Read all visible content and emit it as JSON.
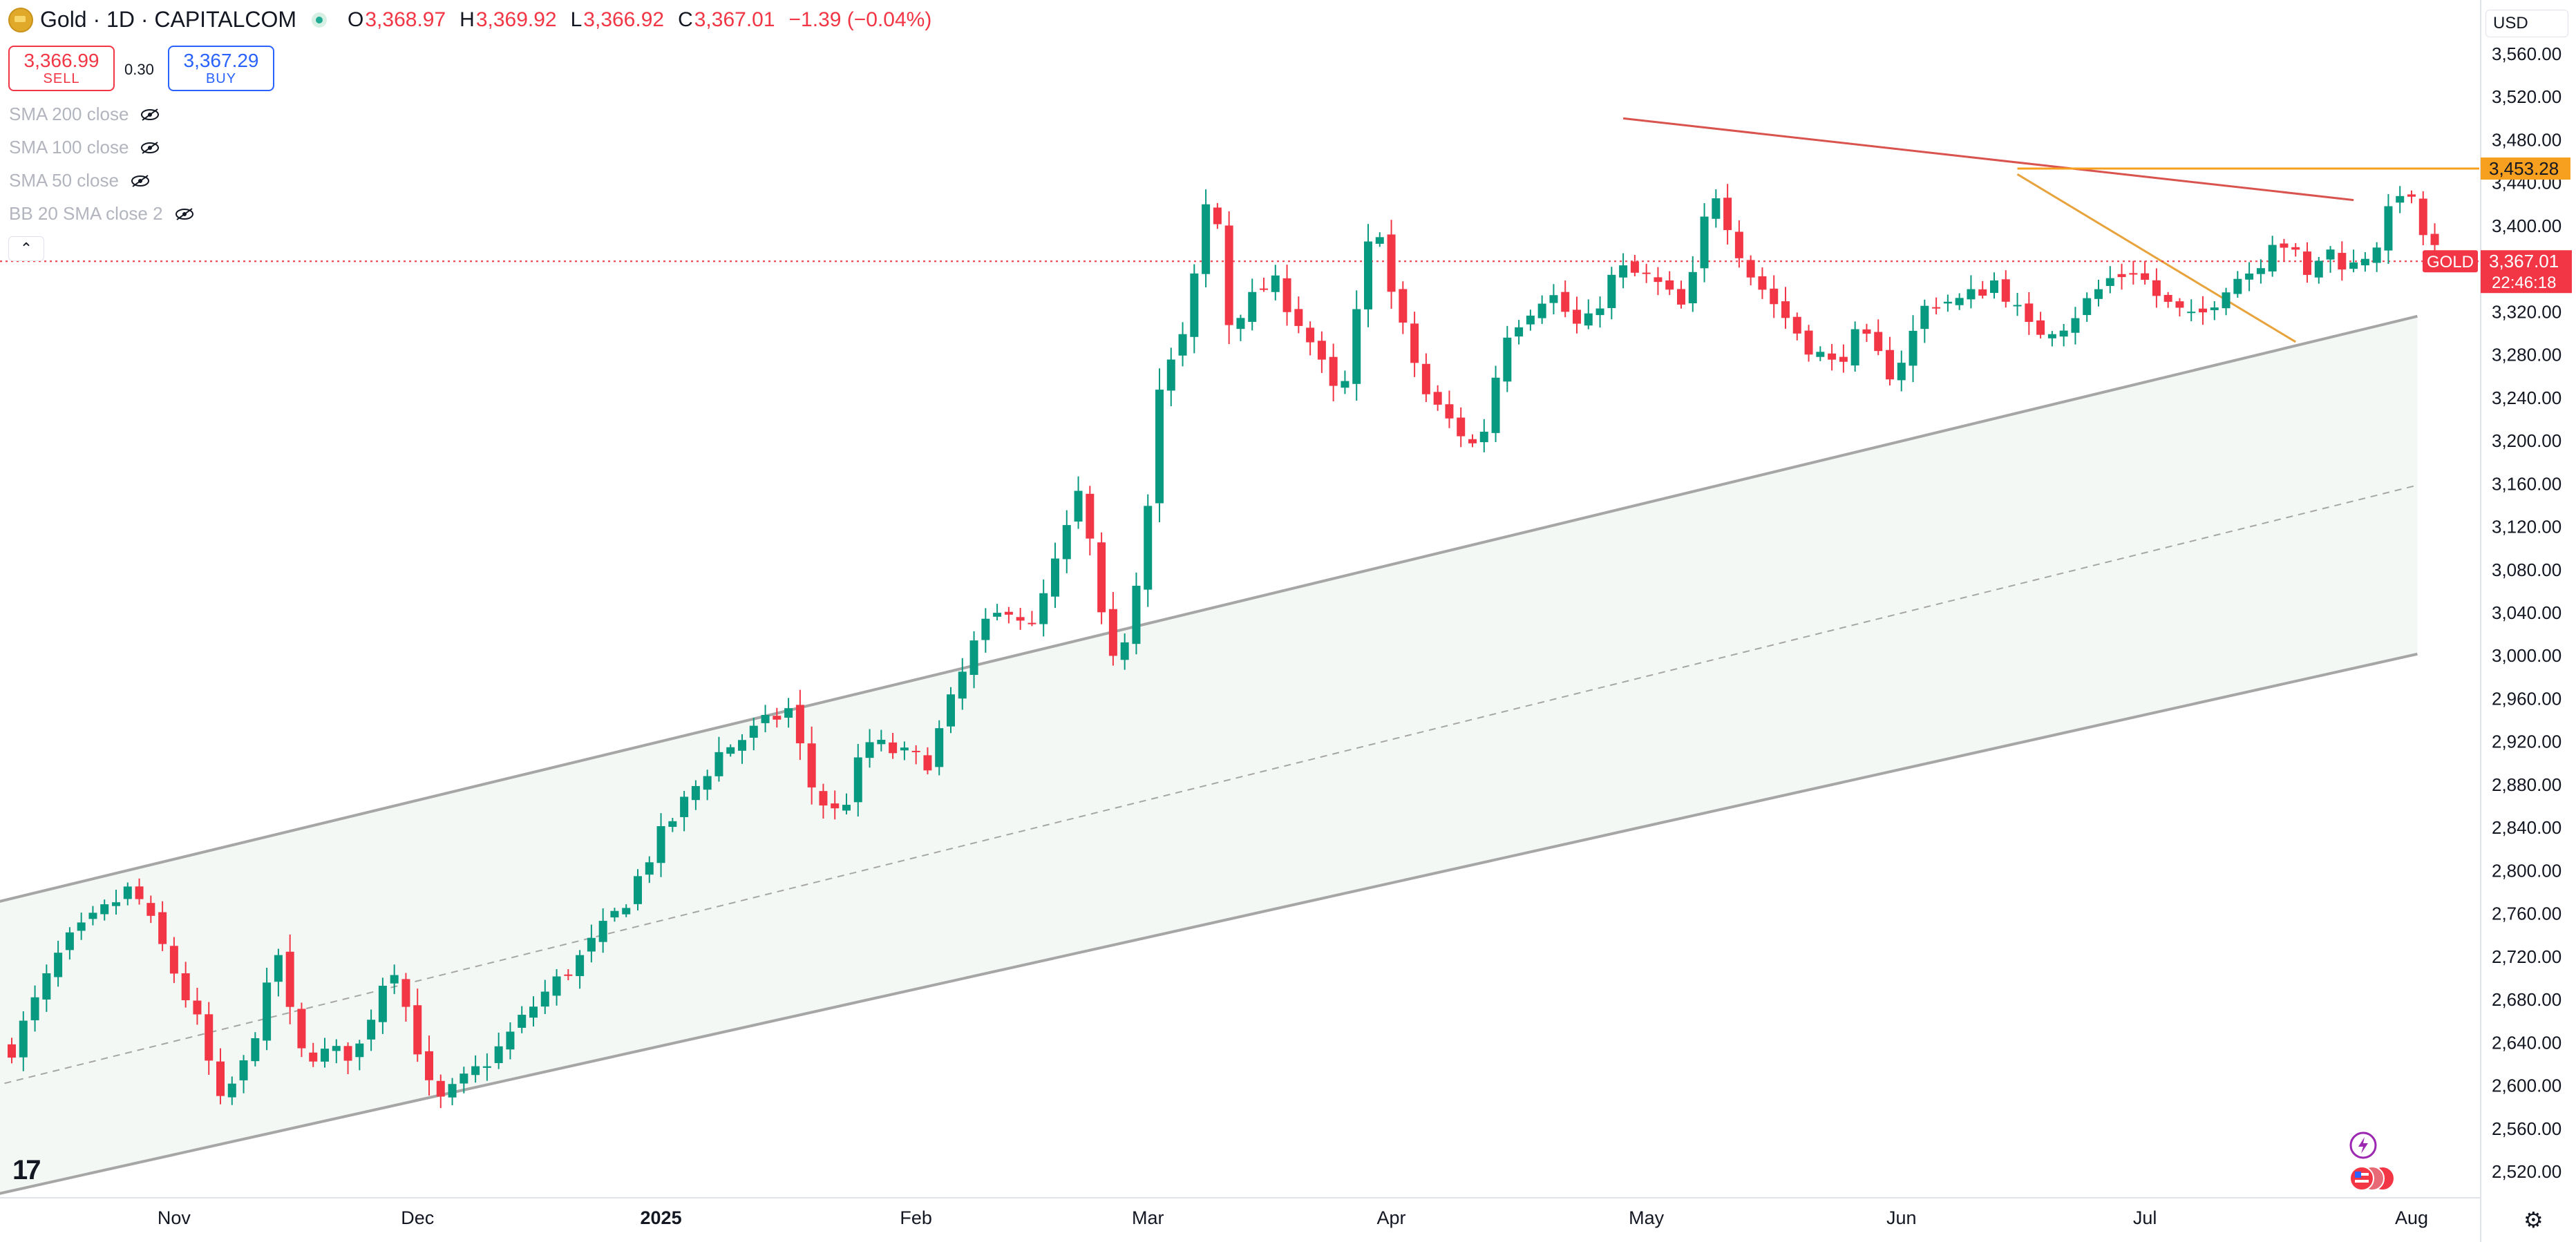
{
  "legend": {
    "symbol": "Gold · 1D · CAPITALCOM",
    "open_label": "O",
    "open": "3,368.97",
    "high_label": "H",
    "high": "3,369.92",
    "low_label": "L",
    "low": "3,366.92",
    "close_label": "C",
    "close": "3,367.01",
    "change": "−1.39 (−0.04%)"
  },
  "trade": {
    "sell_price": "3,366.99",
    "sell_label": "SELL",
    "spread": "0.30",
    "buy_price": "3,367.29",
    "buy_label": "BUY"
  },
  "indicators": [
    "SMA 200 close",
    "SMA 100 close",
    "SMA 50 close",
    "BB 20 SMA close 2"
  ],
  "currency": "USD",
  "icons": [
    "gold-logo-icon",
    "market-open-dot-icon",
    "eye-hidden-icon",
    "chevron-up-icon",
    "tradingview-logo-icon",
    "flash-icon",
    "us-flag-icon",
    "settings-gear-icon"
  ],
  "colors": {
    "up": "#089981",
    "down": "#f23645",
    "resistance": "#d9534f",
    "trendline": "#e8a33d",
    "channel": "#a9a9a9",
    "last_price": "#f23645",
    "level": "#f79f1f"
  },
  "chart_data": {
    "type": "candlestick",
    "title": "Gold · 1D · CAPITALCOM",
    "xlabel": "",
    "ylabel": "USD",
    "ylim": [
      2500,
      3580
    ],
    "y_ticks": [
      2520,
      2560,
      2600,
      2640,
      2680,
      2720,
      2760,
      2800,
      2840,
      2880,
      2920,
      2960,
      3000,
      3040,
      3080,
      3120,
      3160,
      3200,
      3240,
      3280,
      3320,
      3360,
      3400,
      3440,
      3480,
      3520,
      3560
    ],
    "y_tick_labels": [
      "2,520.00",
      "2,560.00",
      "2,600.00",
      "2,640.00",
      "2,680.00",
      "2,720.00",
      "2,760.00",
      "2,800.00",
      "2,840.00",
      "2,880.00",
      "2,920.00",
      "2,960.00",
      "3,000.00",
      "3,040.00",
      "3,080.00",
      "3,120.00",
      "3,160.00",
      "3,200.00",
      "3,240.00",
      "3,280.00",
      "3,320.00",
      "3,360.00",
      "3,400.00",
      "3,440.00",
      "3,480.00",
      "3,520.00",
      "3,560.00"
    ],
    "x_ticks": [
      {
        "label": "Nov",
        "bar": 14,
        "bold": false
      },
      {
        "label": "Dec",
        "bar": 35,
        "bold": false
      },
      {
        "label": "2025",
        "bar": 56,
        "bold": true
      },
      {
        "label": "Feb",
        "bar": 78,
        "bold": false
      },
      {
        "label": "Mar",
        "bar": 98,
        "bold": false
      },
      {
        "label": "Apr",
        "bar": 119,
        "bold": false
      },
      {
        "label": "May",
        "bar": 141,
        "bold": false
      },
      {
        "label": "Jun",
        "bar": 163,
        "bold": false
      },
      {
        "label": "Jul",
        "bar": 184,
        "bold": false
      },
      {
        "label": "Aug",
        "bar": 207,
        "bold": false
      }
    ],
    "bar_range": [
      0,
      210
    ],
    "waypoints": [
      [
        0,
        2635
      ],
      [
        6,
        2730
      ],
      [
        14,
        2785
      ],
      [
        18,
        2720
      ],
      [
        22,
        2650
      ],
      [
        24,
        2580
      ],
      [
        27,
        2620
      ],
      [
        31,
        2725
      ],
      [
        33,
        2630
      ],
      [
        40,
        2630
      ],
      [
        44,
        2720
      ],
      [
        49,
        2580
      ],
      [
        56,
        2630
      ],
      [
        61,
        2680
      ],
      [
        66,
        2720
      ],
      [
        71,
        2770
      ],
      [
        75,
        2830
      ],
      [
        82,
        2910
      ],
      [
        90,
        2950
      ],
      [
        93,
        2870
      ],
      [
        96,
        2850
      ],
      [
        99,
        2920
      ],
      [
        106,
        2900
      ],
      [
        112,
        3020
      ],
      [
        116,
        3050
      ],
      [
        118,
        3020
      ],
      [
        122,
        3110
      ],
      [
        124,
        3160
      ],
      [
        126,
        3040
      ],
      [
        128,
        2980
      ],
      [
        131,
        3100
      ],
      [
        133,
        3250
      ],
      [
        136,
        3300
      ],
      [
        139,
        3450
      ],
      [
        141,
        3310
      ],
      [
        146,
        3350
      ],
      [
        150,
        3300
      ],
      [
        154,
        3230
      ],
      [
        158,
        3420
      ],
      [
        160,
        3330
      ],
      [
        164,
        3240
      ],
      [
        170,
        3190
      ],
      [
        173,
        3300
      ],
      [
        178,
        3340
      ],
      [
        182,
        3300
      ],
      [
        186,
        3360
      ],
      [
        190,
        3350
      ],
      [
        194,
        3320
      ],
      [
        197,
        3440
      ],
      [
        201,
        3360
      ],
      [
        205,
        3320
      ],
      [
        208,
        3290
      ],
      [
        211,
        3270
      ],
      [
        214,
        3300
      ],
      [
        218,
        3260
      ],
      [
        222,
        3330
      ],
      [
        226,
        3330
      ],
      [
        230,
        3350
      ],
      [
        234,
        3300
      ],
      [
        238,
        3310
      ],
      [
        243,
        3350
      ],
      [
        246,
        3360
      ],
      [
        249,
        3330
      ],
      [
        253,
        3310
      ],
      [
        257,
        3350
      ],
      [
        260,
        3360
      ],
      [
        262,
        3390
      ],
      [
        264,
        3380
      ],
      [
        266,
        3350
      ],
      [
        268,
        3380
      ],
      [
        271,
        3360
      ],
      [
        274,
        3385
      ],
      [
        277,
        3440
      ],
      [
        280,
        3380
      ],
      [
        283,
        3367
      ]
    ],
    "bar_scale": 0.7445,
    "last_price": 3367.01,
    "last_price_label": "3,367.01",
    "countdown": "22:46:18",
    "symbol_badge": "GOLD",
    "level_price": 3453.28,
    "level_price_label": "3,453.28",
    "channel": {
      "upper": [
        [
          -10,
          2748
        ],
        [
          211,
          3325
        ]
      ],
      "mid": [
        [
          -10,
          2577
        ],
        [
          211,
          3168
        ]
      ],
      "lower": [
        [
          -10,
          2478
        ],
        [
          211,
          3010
        ]
      ]
    },
    "resistance_line": [
      [
        139,
        3500
      ],
      [
        202,
        3424
      ]
    ],
    "falling_trendline": [
      [
        173,
        3448
      ],
      [
        197,
        3292
      ]
    ]
  }
}
